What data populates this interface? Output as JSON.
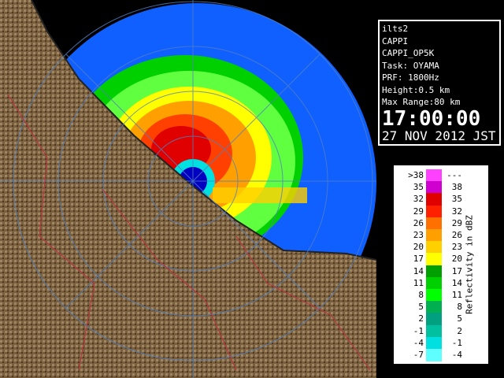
{
  "header": {
    "lines": [
      "ilts2",
      "CAPPI",
      "CAPPI_OP5K",
      "Task: OYAMA",
      "PRF: 1800Hz",
      "Height:0.5 km",
      "Max Range:80 km"
    ],
    "time": "17:00:00",
    "date": "27 NOV 2012 JST"
  },
  "legend": {
    "title": "Reflectivity in dBZ",
    "rows": [
      {
        "low": ">38",
        "high": "---",
        "color": "#ff40ff"
      },
      {
        "low": "35",
        "high": "38",
        "color": "#d000d0"
      },
      {
        "low": "32",
        "high": "35",
        "color": "#e00000"
      },
      {
        "low": "29",
        "high": "32",
        "color": "#ff2000"
      },
      {
        "low": "26",
        "high": "29",
        "color": "#ff7000"
      },
      {
        "low": "23",
        "high": "26",
        "color": "#ffa000"
      },
      {
        "low": "20",
        "high": "23",
        "color": "#ffd000"
      },
      {
        "low": "17",
        "high": "20",
        "color": "#ffff00"
      },
      {
        "low": "14",
        "high": "17",
        "color": "#00a000"
      },
      {
        "low": "11",
        "high": "14",
        "color": "#00d000"
      },
      {
        "low": "8",
        "high": "11",
        "color": "#00ff00"
      },
      {
        "low": "5",
        "high": "8",
        "color": "#00b050"
      },
      {
        "low": "2",
        "high": "5",
        "color": "#00a080"
      },
      {
        "low": "-1",
        "high": "2",
        "color": "#00c0a0"
      },
      {
        "low": "-4",
        "high": "-1",
        "color": "#00e0e0"
      },
      {
        "low": "-7",
        "high": "-4",
        "color": "#60ffff"
      }
    ]
  }
}
